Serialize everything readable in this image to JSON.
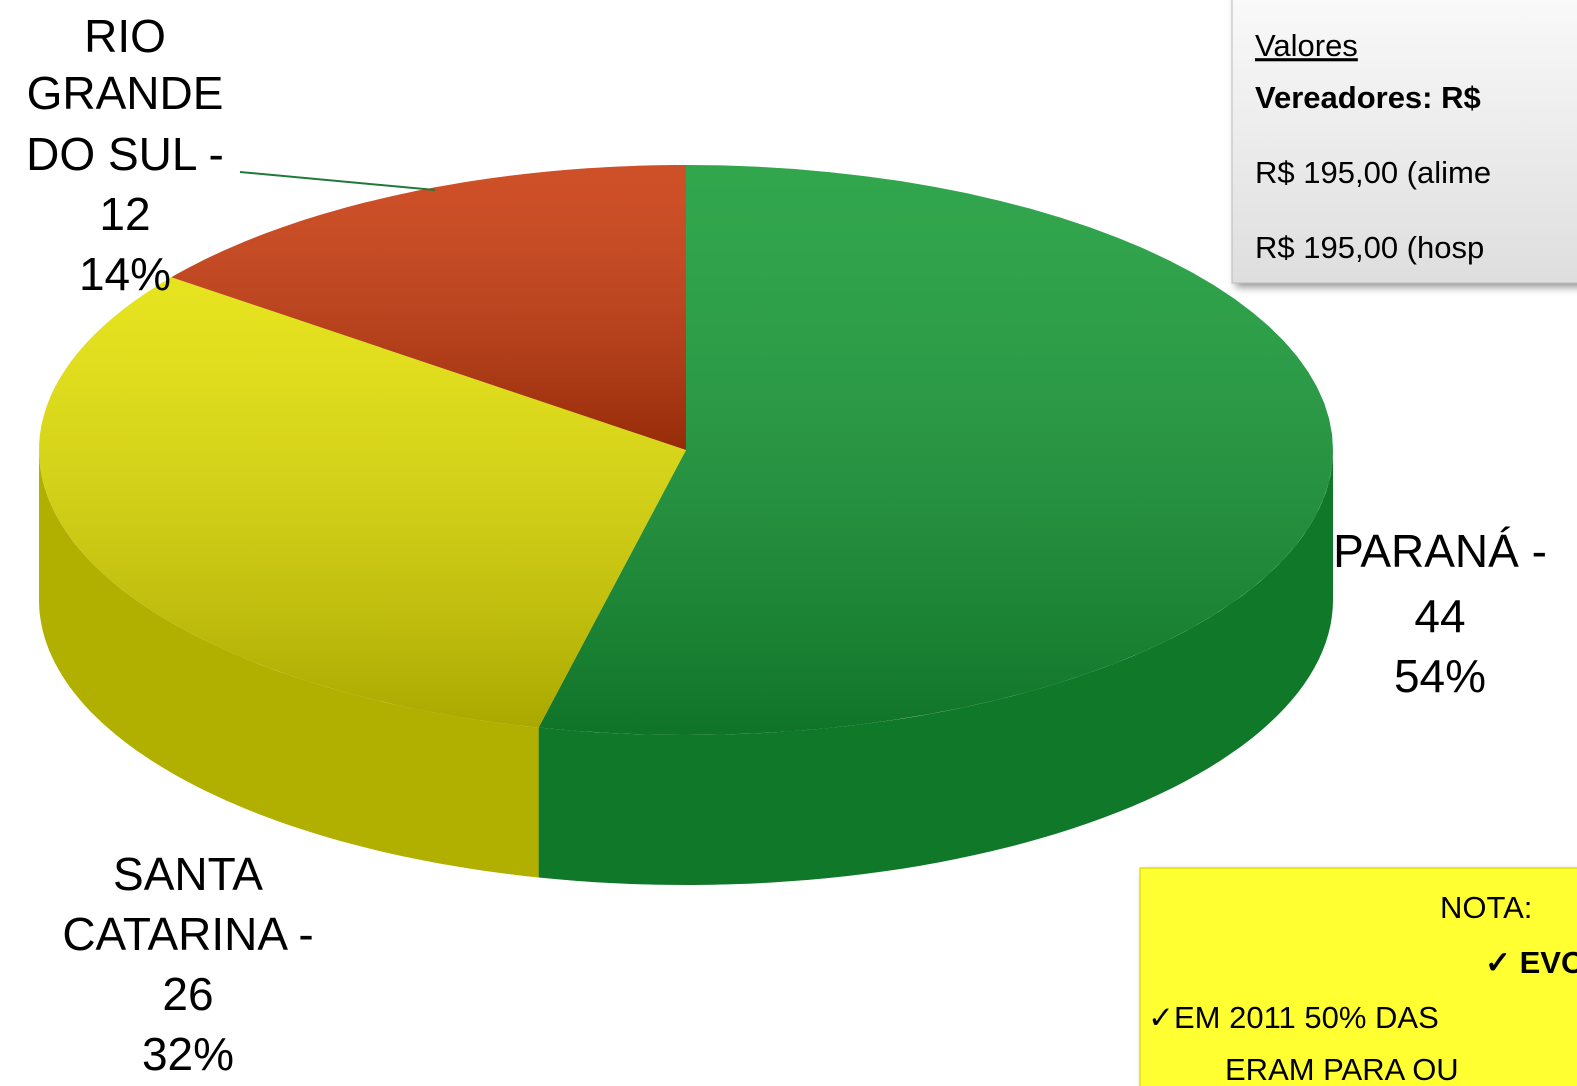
{
  "chart_data": {
    "type": "pie3d",
    "categories": [
      "PARANÁ -",
      "SANTA CATARINA -",
      "RIO GRANDE DO SUL -"
    ],
    "values": [
      44,
      26,
      12
    ],
    "percentages": [
      54,
      32,
      14
    ],
    "percentage_labels": [
      "54%",
      "32%",
      "14%"
    ],
    "colors": [
      "#159a35",
      "#e3e000",
      "#c8380a"
    ]
  },
  "info_box": {
    "title": "Valores",
    "heading": "Vereadores: R$",
    "lines": [
      "R$ 195,00 (alime",
      "R$ 195,00 (hosp"
    ]
  },
  "note_box": {
    "title": "NOTA:",
    "lines": [
      "✓ EVOLUÇÃ",
      "✓EM 2011 50% DAS",
      "ERAM PARA OU"
    ]
  }
}
